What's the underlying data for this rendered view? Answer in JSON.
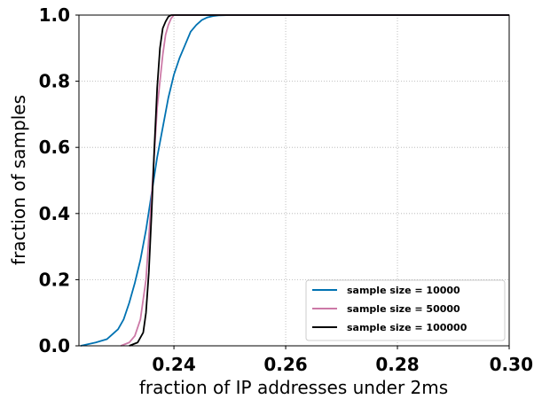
{
  "chart_data": {
    "type": "line",
    "title": "",
    "xlabel": "fraction of IP addresses under 2ms",
    "ylabel": "fraction of samples",
    "xlim": [
      0.223,
      0.3
    ],
    "ylim": [
      0.0,
      1.0
    ],
    "x_ticks": [
      0.24,
      0.26,
      0.28,
      0.3
    ],
    "x_tick_labels": [
      "0.24",
      "0.26",
      "0.28",
      "0.30"
    ],
    "y_ticks": [
      0.0,
      0.2,
      0.4,
      0.6,
      0.8,
      1.0
    ],
    "y_tick_labels": [
      "0.0",
      "0.2",
      "0.4",
      "0.6",
      "0.8",
      "1.0"
    ],
    "grid": true,
    "grid_style": "dotted",
    "legend_position": "lower-right",
    "series": [
      {
        "name": "sample size = 10000",
        "color": "#0072b2",
        "x": [
          0.2233,
          0.226,
          0.228,
          0.23,
          0.231,
          0.232,
          0.233,
          0.234,
          0.235,
          0.236,
          0.237,
          0.238,
          0.239,
          0.24,
          0.241,
          0.242,
          0.243,
          0.244,
          0.245,
          0.246,
          0.247,
          0.248,
          0.25,
          0.252,
          0.3
        ],
        "y": [
          0.0,
          0.01,
          0.02,
          0.05,
          0.08,
          0.13,
          0.19,
          0.26,
          0.35,
          0.46,
          0.57,
          0.66,
          0.75,
          0.82,
          0.87,
          0.91,
          0.95,
          0.97,
          0.985,
          0.993,
          0.997,
          0.999,
          1.0,
          1.0,
          1.0
        ]
      },
      {
        "name": "sample size = 50000",
        "color": "#cc79a7",
        "x": [
          0.2305,
          0.232,
          0.233,
          0.234,
          0.235,
          0.236,
          0.237,
          0.238,
          0.2385,
          0.239,
          0.2395,
          0.24,
          0.241,
          0.3
        ],
        "y": [
          0.0,
          0.01,
          0.03,
          0.08,
          0.2,
          0.45,
          0.72,
          0.88,
          0.94,
          0.97,
          0.99,
          1.0,
          1.0,
          1.0
        ]
      },
      {
        "name": "sample size = 100000",
        "color": "#000000",
        "x": [
          0.232,
          0.2335,
          0.2345,
          0.235,
          0.2355,
          0.236,
          0.2365,
          0.237,
          0.2375,
          0.238,
          0.2385,
          0.239,
          0.2395,
          0.24,
          0.3
        ],
        "y": [
          0.0,
          0.01,
          0.04,
          0.1,
          0.22,
          0.4,
          0.6,
          0.78,
          0.9,
          0.96,
          0.98,
          0.995,
          1.0,
          1.0,
          1.0
        ]
      }
    ]
  }
}
